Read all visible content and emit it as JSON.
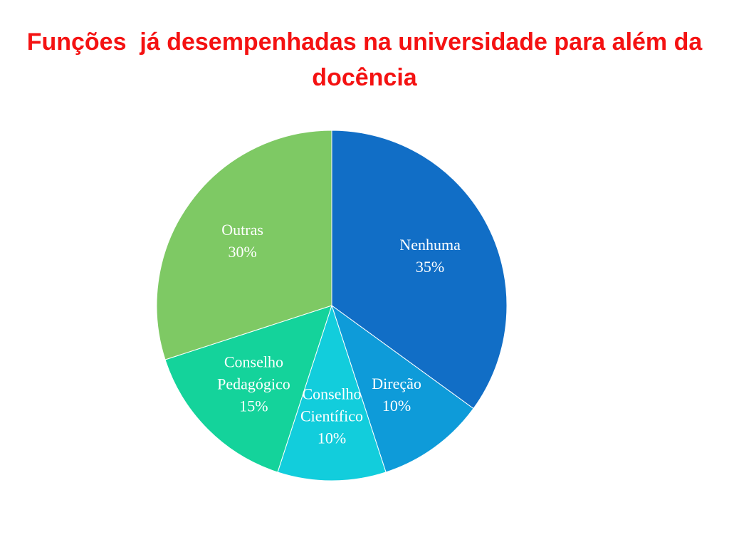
{
  "chart_data": {
    "type": "pie",
    "title": "Funções  já desempenhadas na universidade para além da docência",
    "categories": [
      "Nenhuma",
      "Direção",
      "Conselho Científico",
      "Conselho Pedagógico",
      "Outras"
    ],
    "values": [
      35,
      10,
      10,
      15,
      30
    ],
    "value_labels": [
      "35%",
      "10%",
      "10%",
      "15%",
      "30%"
    ],
    "colors": [
      "#116ec6",
      "#0e9bd9",
      "#12cddc",
      "#14d39b",
      "#7ec964"
    ]
  }
}
